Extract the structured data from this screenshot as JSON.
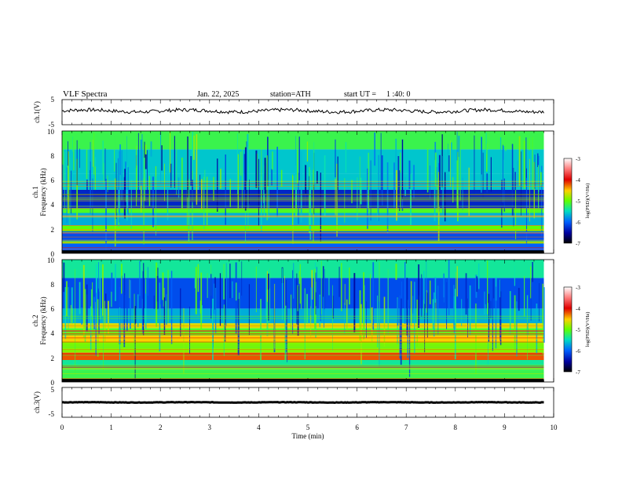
{
  "header": {
    "title": "VLF Spectra",
    "date": "Jan. 22, 2025",
    "station": "station=ATH",
    "start_label": "start UT =",
    "start_time": "1 :40: 0"
  },
  "chart_data": [
    {
      "type": "line",
      "name": "ch1-waveform",
      "ylabel": "ch.1(V)",
      "ylim": [
        -5,
        5
      ],
      "yticks": [
        "5",
        "-5"
      ],
      "xlim": [
        0,
        10
      ],
      "x_end": 9.8,
      "baseline": 0.5,
      "color": "#000000"
    },
    {
      "type": "heatmap",
      "name": "ch1-spectrogram",
      "ylabel_lines": [
        "ch.1",
        "Frequency (kHz)"
      ],
      "ylim": [
        0,
        10
      ],
      "yticks": [
        "0",
        "2",
        "4",
        "6",
        "8",
        "10"
      ],
      "xlim": [
        0,
        10
      ],
      "x_end": 9.8,
      "colorbar": {
        "label": "log(PSD)(V²/Hz)",
        "range": [
          -7,
          -3
        ],
        "ticks": [
          "-3",
          "-4",
          "-5",
          "-6",
          "-7"
        ]
      },
      "bands_khz": [
        {
          "from": 0.0,
          "to": 0.8,
          "level": -6.0
        },
        {
          "from": 0.8,
          "to": 1.0,
          "level": -4.9
        },
        {
          "from": 1.0,
          "to": 1.8,
          "level": -6.1
        },
        {
          "from": 1.8,
          "to": 2.3,
          "level": -5.0
        },
        {
          "from": 2.3,
          "to": 3.3,
          "level": -5.7
        },
        {
          "from": 3.3,
          "to": 3.7,
          "level": -5.1
        },
        {
          "from": 3.7,
          "to": 5.2,
          "level": -6.3
        },
        {
          "from": 5.2,
          "to": 6.5,
          "level": -5.6
        },
        {
          "from": 6.5,
          "to": 8.5,
          "level": -5.6
        },
        {
          "from": 8.5,
          "to": 10.0,
          "level": -5.2
        }
      ]
    },
    {
      "type": "heatmap",
      "name": "ch2-spectrogram",
      "ylabel_lines": [
        "ch.2",
        "Frequency (kHz)"
      ],
      "ylim": [
        0,
        10
      ],
      "yticks": [
        "0",
        "2",
        "4",
        "6",
        "8",
        "10"
      ],
      "xlim": [
        0,
        10
      ],
      "x_end": 9.8,
      "colorbar": {
        "label": "log(PSD)(V²/Hz)",
        "range": [
          -7,
          -3
        ],
        "ticks": [
          "-3",
          "-4",
          "-5",
          "-6",
          "-7"
        ]
      },
      "bands_khz": [
        {
          "from": 0.0,
          "to": 1.0,
          "level": -5.2
        },
        {
          "from": 1.0,
          "to": 1.8,
          "level": -5.4
        },
        {
          "from": 1.8,
          "to": 2.4,
          "level": -4.2
        },
        {
          "from": 2.4,
          "to": 3.3,
          "level": -4.9
        },
        {
          "from": 3.3,
          "to": 3.8,
          "level": -4.5
        },
        {
          "from": 3.8,
          "to": 4.4,
          "level": -5.1
        },
        {
          "from": 4.4,
          "to": 4.8,
          "level": -4.6
        },
        {
          "from": 4.8,
          "to": 6.0,
          "level": -5.7
        },
        {
          "from": 6.0,
          "to": 8.5,
          "level": -6.1
        },
        {
          "from": 8.5,
          "to": 10.0,
          "level": -5.4
        }
      ]
    },
    {
      "type": "line",
      "name": "ch3-waveform",
      "ylabel": "ch.3(V)",
      "ylim": [
        -5,
        5
      ],
      "yticks": [
        "5",
        "-5"
      ],
      "xlim": [
        0,
        10
      ],
      "x_end": 9.8,
      "baseline": 0.0,
      "color": "#000000"
    }
  ],
  "xaxis": {
    "label": "Time (min)",
    "ticks": [
      "0",
      "1",
      "2",
      "3",
      "4",
      "5",
      "6",
      "7",
      "8",
      "9",
      "10"
    ]
  }
}
